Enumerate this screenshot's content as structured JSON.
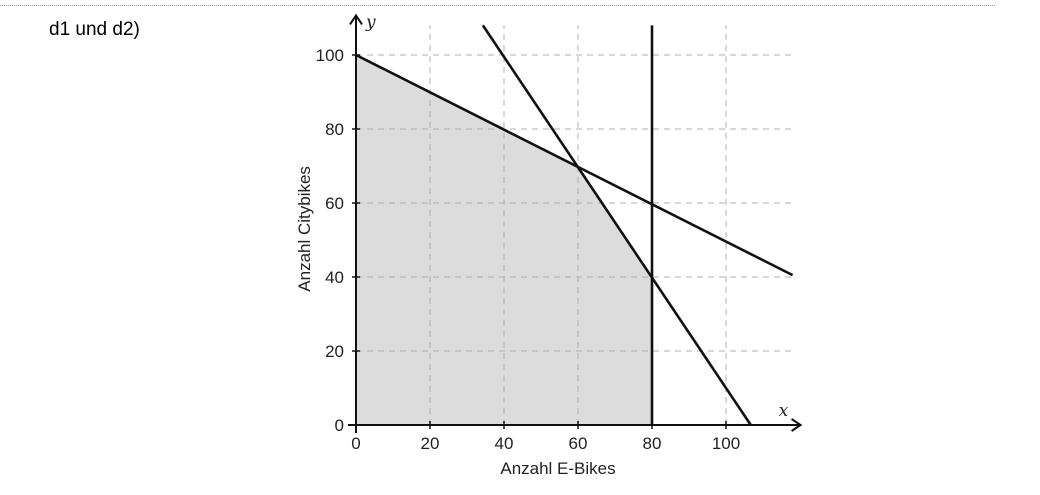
{
  "label": "d1 und d2)",
  "chart_data": {
    "type": "line",
    "xlabel": "Anzahl E-Bikes",
    "ylabel": "Anzahl Citybikes",
    "x_axis_var": "x",
    "y_axis_var": "y",
    "xlim": [
      0,
      118
    ],
    "ylim": [
      0,
      108
    ],
    "xticks": [
      0,
      20,
      40,
      60,
      80,
      100
    ],
    "yticks": [
      0,
      20,
      40,
      60,
      80,
      100
    ],
    "grid": true,
    "series": [
      {
        "points": [
          [
            0,
            100
          ],
          [
            118,
            40.5
          ]
        ]
      },
      {
        "points": [
          [
            34.3,
            108
          ],
          [
            106.7,
            0
          ]
        ]
      },
      {
        "points": [
          [
            80,
            0
          ],
          [
            80,
            108
          ]
        ]
      }
    ],
    "feasible_region": [
      [
        0,
        0
      ],
      [
        0,
        100
      ],
      [
        60,
        70
      ],
      [
        80,
        40
      ],
      [
        80,
        0
      ]
    ],
    "colors": {
      "region": "#dcdcdc",
      "line": "#111111",
      "grid": "#b0b0b0"
    }
  }
}
